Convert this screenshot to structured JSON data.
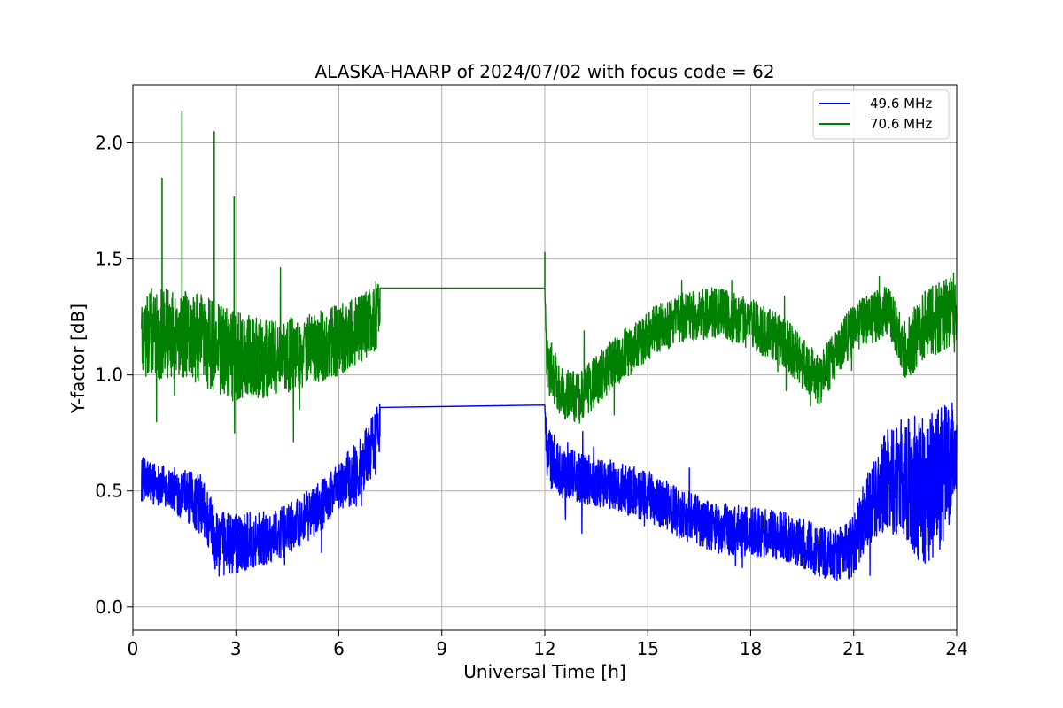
{
  "chart_data": {
    "type": "line",
    "title": "ALASKA-HAARP of 2024/07/02 with focus code = 62",
    "xlabel": "Universal Time [h]",
    "ylabel": "Y-factor [dB]",
    "xlim": [
      0,
      24
    ],
    "ylim": [
      -0.1,
      2.25
    ],
    "xticks": [
      0,
      3,
      6,
      9,
      12,
      15,
      18,
      21,
      24
    ],
    "xtick_labels": [
      "0",
      "3",
      "6",
      "9",
      "12",
      "15",
      "18",
      "21",
      "24"
    ],
    "yticks": [
      0.0,
      0.5,
      1.0,
      1.5,
      2.0
    ],
    "ytick_labels": [
      "0.0",
      "0.5",
      "1.0",
      "1.5",
      "2.0"
    ],
    "grid": true,
    "legend_position": "top-right",
    "series": [
      {
        "name": "49.6 MHz",
        "color": "#0000ff",
        "x": [
          0.25,
          1.0,
          2.0,
          2.5,
          3.0,
          3.5,
          4.0,
          4.5,
          5.0,
          5.5,
          6.0,
          6.5,
          7.0,
          7.2,
          12.0,
          12.05,
          12.5,
          13.0,
          14.0,
          15.0,
          16.0,
          17.0,
          18.0,
          19.0,
          20.0,
          20.5,
          20.9,
          21.5,
          22.0,
          22.5,
          23.0,
          23.5,
          24.0
        ],
        "y": [
          0.55,
          0.52,
          0.44,
          0.27,
          0.27,
          0.29,
          0.3,
          0.33,
          0.38,
          0.44,
          0.51,
          0.58,
          0.7,
          0.81,
          0.87,
          0.66,
          0.58,
          0.56,
          0.52,
          0.48,
          0.4,
          0.34,
          0.32,
          0.3,
          0.24,
          0.22,
          0.25,
          0.45,
          0.55,
          0.55,
          0.5,
          0.55,
          0.65
        ],
        "noise_amplitude": [
          0.09,
          0.08,
          0.12,
          0.13,
          0.12,
          0.11,
          0.1,
          0.1,
          0.1,
          0.1,
          0.1,
          0.12,
          0.12,
          0.12,
          0.0,
          0.12,
          0.1,
          0.1,
          0.1,
          0.1,
          0.1,
          0.1,
          0.1,
          0.1,
          0.1,
          0.1,
          0.12,
          0.16,
          0.2,
          0.25,
          0.3,
          0.28,
          0.22
        ],
        "gap": {
          "x": [
            7.2,
            12.0
          ],
          "y": [
            0.86,
            0.87
          ]
        }
      },
      {
        "name": "70.6 MHz",
        "color": "#008000",
        "x": [
          0.25,
          1.0,
          2.0,
          3.0,
          4.0,
          5.0,
          6.0,
          7.0,
          7.2,
          12.0,
          12.05,
          12.5,
          13.0,
          14.0,
          15.0,
          16.0,
          17.0,
          18.0,
          19.0,
          19.5,
          20.0,
          21.0,
          22.0,
          22.5,
          23.0,
          24.0
        ],
        "y": [
          1.18,
          1.18,
          1.15,
          1.08,
          1.07,
          1.1,
          1.15,
          1.22,
          1.3,
          1.38,
          1.05,
          0.92,
          0.9,
          1.05,
          1.17,
          1.25,
          1.27,
          1.22,
          1.14,
          1.05,
          0.98,
          1.2,
          1.28,
          1.1,
          1.2,
          1.3
        ],
        "noise_amplitude": [
          0.18,
          0.18,
          0.18,
          0.18,
          0.15,
          0.14,
          0.14,
          0.14,
          0.14,
          0.0,
          0.12,
          0.1,
          0.1,
          0.1,
          0.1,
          0.1,
          0.1,
          0.1,
          0.1,
          0.1,
          0.1,
          0.1,
          0.1,
          0.12,
          0.14,
          0.14
        ],
        "gap": {
          "x": [
            7.2,
            12.0
          ],
          "y": [
            1.375,
            1.375
          ]
        },
        "spikes": [
          {
            "x": 1.43,
            "y": 2.14
          },
          {
            "x": 2.37,
            "y": 2.05
          },
          {
            "x": 0.85,
            "y": 1.85
          },
          {
            "x": 2.95,
            "y": 1.77
          },
          {
            "x": 12.0,
            "y": 1.53
          }
        ]
      }
    ]
  }
}
